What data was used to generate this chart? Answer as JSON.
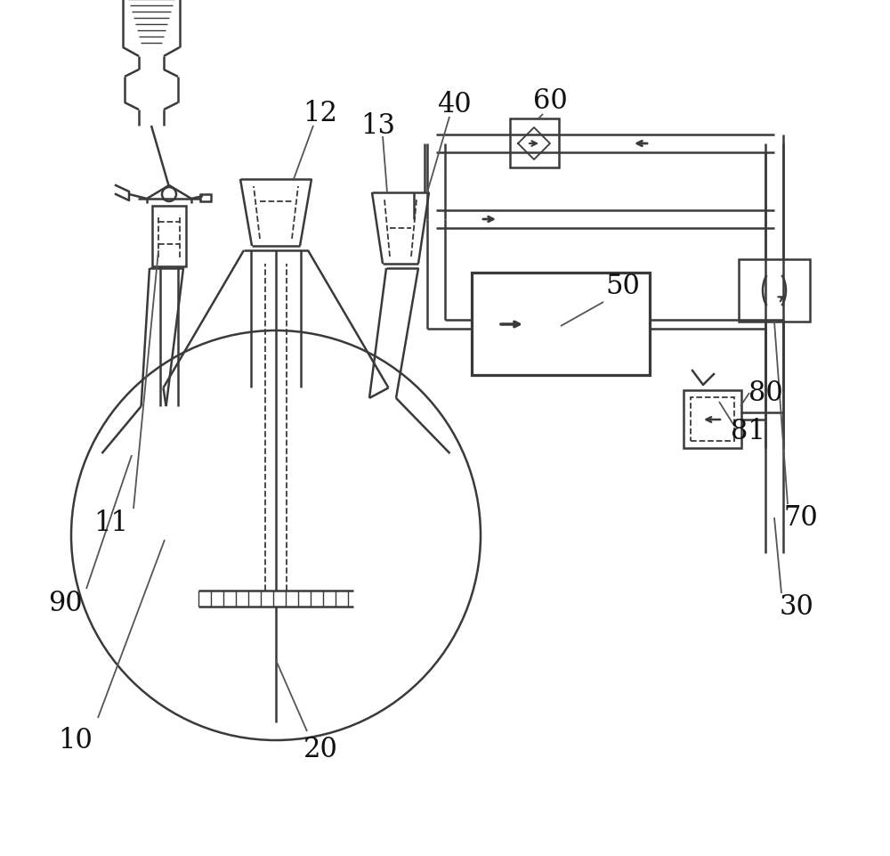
{
  "bg_color": "#ffffff",
  "line_color": "#3a3a3a",
  "label_color": "#111111",
  "label_fontsize": 22,
  "figsize": [
    10.0,
    9.62
  ],
  "dpi": 100,
  "xlim": [
    0,
    1000
  ],
  "ylim": [
    0,
    962
  ]
}
